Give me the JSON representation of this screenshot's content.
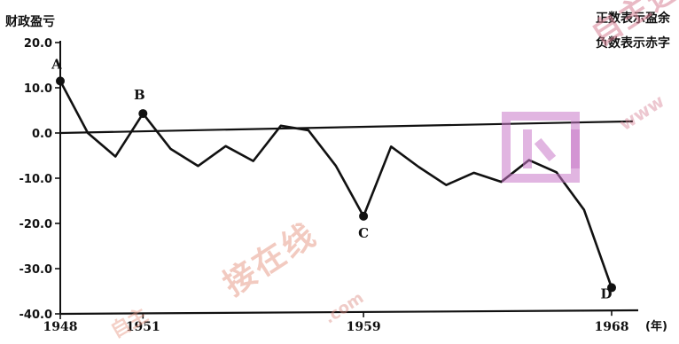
{
  "chart_data": {
    "type": "line",
    "ylabel": "财政盈亏",
    "legend": [
      "正数表示盈余",
      "负数表示赤字"
    ],
    "x_unit": "(年)",
    "ylim": [
      -40,
      20
    ],
    "yticks": [
      {
        "value": 20,
        "label": "20.0"
      },
      {
        "value": 10,
        "label": "10.0"
      },
      {
        "value": 0,
        "label": "0.0"
      },
      {
        "value": -10,
        "label": "-10.0"
      },
      {
        "value": -20,
        "label": "-20.0"
      },
      {
        "value": -30,
        "label": "-30.0"
      },
      {
        "value": -40,
        "label": "-40.0"
      }
    ],
    "xlim": [
      1948,
      1968
    ],
    "xticks": [
      {
        "value": 1948,
        "label": "1948"
      },
      {
        "value": 1951,
        "label": "1951"
      },
      {
        "value": 1959,
        "label": "1959"
      },
      {
        "value": 1968,
        "label": "1968"
      }
    ],
    "x": [
      1948,
      1949,
      1950,
      1951,
      1952,
      1953,
      1954,
      1955,
      1956,
      1957,
      1958,
      1959,
      1960,
      1961,
      1962,
      1963,
      1964,
      1965,
      1966,
      1967,
      1968
    ],
    "values": [
      11.5,
      0,
      -5.2,
      4.3,
      -3.5,
      -7.3,
      -2.9,
      -6.2,
      1.6,
      0.6,
      -7.3,
      -18.4,
      -3.0,
      -7.5,
      -11.5,
      -8.8,
      -10.8,
      -6.0,
      -8.7,
      -17.0,
      -34.2
    ],
    "labeled_points": [
      {
        "label": "A",
        "x": 1948,
        "y": 11.5
      },
      {
        "label": "B",
        "x": 1951,
        "y": 4.3
      },
      {
        "label": "C",
        "x": 1959,
        "y": -18.4
      },
      {
        "label": "D",
        "x": 1968,
        "y": -34.2
      }
    ],
    "trend_line": {
      "from": [
        1948,
        0
      ],
      "to": [
        1968,
        2.5
      ]
    }
  },
  "watermark": {
    "main": "自主选",
    "domain": "www",
    "lower": "接在线",
    "lower_domain": ".com",
    "tail": "自主",
    "color": "#c878c8"
  }
}
